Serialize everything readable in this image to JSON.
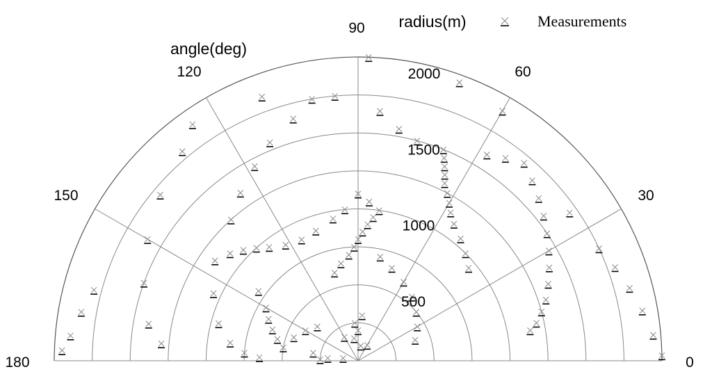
{
  "chart_data": {
    "type": "scatter",
    "coordinate_system": "polar",
    "angle_label": "angle(deg)",
    "radius_label": "radius(m)",
    "angle_ticks": [
      "0",
      "30",
      "60",
      "90",
      "120",
      "150",
      "180"
    ],
    "radius_ticks": [
      "500",
      "1000",
      "1500",
      "2000"
    ],
    "angle_range": [
      0,
      180
    ],
    "radius_range": [
      0,
      2000
    ],
    "grid": true,
    "legend_position": "top-right",
    "series": [
      {
        "name": "Measurements",
        "marker": "x-dash",
        "color": "#000000",
        "points_polar_r_theta": [
          [
            200,
            90
          ],
          [
            150,
            100
          ],
          [
            100,
            80
          ],
          [
            300,
            85
          ],
          [
            250,
            95
          ],
          [
            120,
            60
          ],
          [
            180,
            120
          ],
          [
            600,
            105
          ],
          [
            650,
            100
          ],
          [
            700,
            95
          ],
          [
            750,
            92
          ],
          [
            800,
            90
          ],
          [
            850,
            88
          ],
          [
            900,
            86
          ],
          [
            950,
            84
          ],
          [
            1000,
            82
          ],
          [
            1050,
            86
          ],
          [
            1100,
            90
          ],
          [
            1000,
            95
          ],
          [
            950,
            100
          ],
          [
            900,
            108
          ],
          [
            880,
            115
          ],
          [
            900,
            122
          ],
          [
            950,
            128
          ],
          [
            1000,
            132
          ],
          [
            1050,
            136
          ],
          [
            1100,
            140
          ],
          [
            700,
            150
          ],
          [
            650,
            155
          ],
          [
            600,
            160
          ],
          [
            550,
            165
          ],
          [
            500,
            170
          ],
          [
            800,
            145
          ],
          [
            950,
            40
          ],
          [
            1000,
            45
          ],
          [
            1050,
            50
          ],
          [
            1100,
            55
          ],
          [
            1150,
            58
          ],
          [
            1200,
            60
          ],
          [
            1250,
            62
          ],
          [
            1300,
            64
          ],
          [
            1350,
            65
          ],
          [
            1400,
            66
          ],
          [
            1450,
            67
          ],
          [
            1500,
            68
          ],
          [
            1600,
            58
          ],
          [
            1650,
            54
          ],
          [
            1700,
            50
          ],
          [
            1650,
            46
          ],
          [
            1600,
            42
          ],
          [
            1550,
            38
          ],
          [
            1500,
            34
          ],
          [
            1450,
            30
          ],
          [
            1400,
            26
          ],
          [
            1350,
            22
          ],
          [
            1300,
            18
          ],
          [
            1250,
            15
          ],
          [
            1200,
            12
          ],
          [
            1150,
            10
          ],
          [
            1500,
            75
          ],
          [
            1550,
            80
          ],
          [
            1650,
            85
          ],
          [
            1750,
            100
          ],
          [
            1850,
            110
          ],
          [
            1900,
            125
          ],
          [
            1800,
            130
          ],
          [
            1700,
            140
          ],
          [
            1600,
            150
          ],
          [
            1500,
            160
          ],
          [
            1400,
            170
          ],
          [
            1300,
            175
          ],
          [
            1700,
            35
          ],
          [
            1750,
            25
          ],
          [
            1800,
            20
          ],
          [
            1850,
            15
          ],
          [
            1900,
            10
          ],
          [
            1950,
            5
          ],
          [
            1800,
            165
          ],
          [
            1850,
            170
          ],
          [
            1900,
            175
          ],
          [
            1950,
            178
          ],
          [
            2000,
            1
          ],
          [
            1900,
            60
          ],
          [
            1950,
            70
          ],
          [
            2000,
            88
          ],
          [
            1750,
            95
          ],
          [
            1650,
            105
          ],
          [
            1550,
            112
          ],
          [
            1450,
            118
          ],
          [
            1350,
            125
          ],
          [
            1250,
            132
          ],
          [
            1150,
            145
          ],
          [
            1050,
            155
          ],
          [
            950,
            165
          ],
          [
            850,
            172
          ],
          [
            750,
            176
          ],
          [
            650,
            178
          ],
          [
            400,
            20
          ],
          [
            450,
            30
          ],
          [
            500,
            40
          ],
          [
            550,
            50
          ],
          [
            600,
            60
          ],
          [
            650,
            70
          ],
          [
            700,
            78
          ],
          [
            350,
            140
          ],
          [
            400,
            150
          ],
          [
            450,
            160
          ],
          [
            300,
            170
          ],
          [
            250,
            178
          ],
          [
            200,
            175
          ],
          [
            100,
            170
          ]
        ]
      }
    ]
  }
}
